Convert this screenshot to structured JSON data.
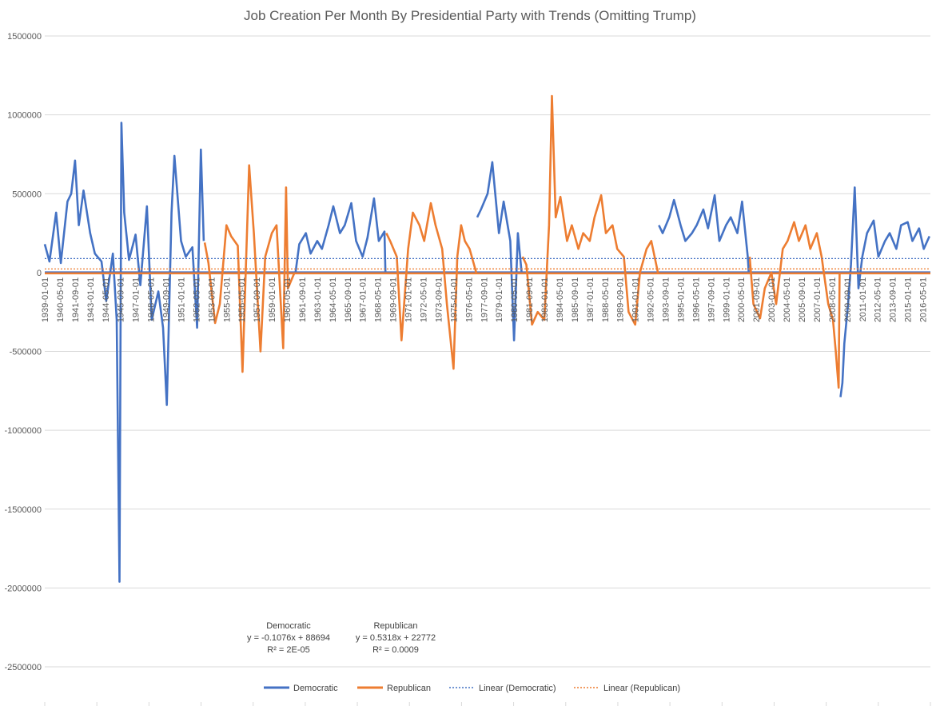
{
  "colors": {
    "democratic": "#4472C4",
    "republican": "#ED7D31",
    "grid": "#D9D9D9",
    "text": "#595959"
  },
  "chart_data": {
    "type": "line",
    "title": "Job Creation Per Month By Presidential Party with Trends (Omitting Trump)",
    "xlabel": "",
    "ylabel": "",
    "ylim": [
      -2500000,
      1500000
    ],
    "y_ticks": [
      1500000,
      1000000,
      500000,
      0,
      -500000,
      -1000000,
      -1500000,
      -2000000,
      -2500000
    ],
    "y_tick_labels": [
      "1500000",
      "1000000",
      "500000",
      "0",
      "-500000",
      "-1000000",
      "-1500000",
      "-2000000",
      "-2500000"
    ],
    "x_range": [
      "1939-01",
      "2017-01"
    ],
    "x_tick_labels": [
      "1939-01-01",
      "1940-05-01",
      "1941-09-01",
      "1943-01-01",
      "1944-05-01",
      "1945-09-01",
      "1947-01-01",
      "1948-05-01",
      "1949-09-01",
      "1951-01-01",
      "1952-05-01",
      "1953-09-01",
      "1955-01-01",
      "1956-05-01",
      "1957-09-01",
      "1959-01-01",
      "1960-05-01",
      "1961-09-01",
      "1963-01-01",
      "1964-05-01",
      "1965-09-01",
      "1967-01-01",
      "1968-05-01",
      "1969-09-01",
      "1971-01-01",
      "1972-05-01",
      "1973-09-01",
      "1975-01-01",
      "1976-05-01",
      "1977-09-01",
      "1979-01-01",
      "1980-05-01",
      "1981-09-01",
      "1983-01-01",
      "1984-05-01",
      "1985-09-01",
      "1987-01-01",
      "1988-05-01",
      "1989-09-01",
      "1991-01-01",
      "1992-05-01",
      "1993-09-01",
      "1995-01-01",
      "1996-05-01",
      "1997-09-01",
      "1999-01-01",
      "2000-05-01",
      "2001-09-01",
      "2003-01-01",
      "2004-05-01",
      "2005-09-01",
      "2007-01-01",
      "2008-05-01",
      "2009-09-01",
      "2011-01-01",
      "2012-05-01",
      "2013-09-01",
      "2015-01-01",
      "2016-05-01"
    ],
    "legend": {
      "position": "bottom",
      "entries": [
        "Democratic",
        "Republican",
        "Linear (Democratic)",
        "Linear (Republican)"
      ]
    },
    "grid": true,
    "series": [
      {
        "name": "Democratic",
        "x": [
          "1939-01",
          "1939-06",
          "1940-01",
          "1940-06",
          "1941-01",
          "1941-05",
          "1941-09",
          "1942-01",
          "1942-06",
          "1943-01",
          "1943-06",
          "1944-01",
          "1944-06",
          "1945-01",
          "1945-05",
          "1945-08",
          "1945-10",
          "1946-01",
          "1946-06",
          "1947-01",
          "1947-06",
          "1948-01",
          "1948-06",
          "1949-01",
          "1949-06",
          "1949-10",
          "1950-03",
          "1950-06",
          "1951-01",
          "1951-06",
          "1952-01",
          "1952-06",
          "1952-10",
          "1953-01",
          "1953-02",
          "1961-02",
          "2016-12"
        ],
        "values": [
          180000,
          70000,
          380000,
          60000,
          450000,
          500000,
          710000,
          300000,
          520000,
          250000,
          120000,
          70000,
          -180000,
          120000,
          -300000,
          -1960000,
          950000,
          380000,
          80000,
          240000,
          -80000,
          420000,
          -300000,
          -120000,
          -350000,
          -840000,
          380000,
          740000,
          200000,
          100000,
          160000,
          -350000,
          780000,
          200000,
          0,
          0,
          0
        ],
        "segments": [
          {
            "x": [
              "1939-01",
              "1939-06",
              "1940-01",
              "1940-06",
              "1941-01",
              "1941-05",
              "1941-09",
              "1942-01",
              "1942-06",
              "1943-01",
              "1943-06",
              "1944-01",
              "1944-06",
              "1945-01",
              "1945-05",
              "1945-08",
              "1945-10",
              "1946-01",
              "1946-06",
              "1947-01",
              "1947-06",
              "1948-01",
              "1948-06",
              "1949-01",
              "1949-06",
              "1949-10",
              "1950-03",
              "1950-06",
              "1951-01",
              "1951-06",
              "1952-01",
              "1952-06",
              "1952-10",
              "1953-01"
            ],
            "values": [
              180000,
              70000,
              380000,
              60000,
              450000,
              500000,
              710000,
              300000,
              520000,
              250000,
              120000,
              70000,
              -180000,
              120000,
              -300000,
              -1960000,
              950000,
              380000,
              80000,
              240000,
              -80000,
              420000,
              -300000,
              -120000,
              -350000,
              -840000,
              380000,
              740000,
              200000,
              100000,
              160000,
              -350000,
              780000,
              200000
            ]
          },
          {
            "x": [
              "1961-02",
              "1961-06",
              "1962-01",
              "1962-06",
              "1963-01",
              "1963-06",
              "1964-01",
              "1964-06",
              "1965-01",
              "1965-06",
              "1966-01",
              "1966-06",
              "1967-01",
              "1967-06",
              "1968-01",
              "1968-06",
              "1968-12",
              "1969-01"
            ],
            "values": [
              0,
              180000,
              250000,
              120000,
              200000,
              150000,
              300000,
              420000,
              250000,
              300000,
              440000,
              200000,
              100000,
              220000,
              470000,
              200000,
              260000,
              0
            ]
          },
          {
            "x": [
              "1977-02",
              "1977-06",
              "1978-01",
              "1978-06",
              "1979-01",
              "1979-06",
              "1980-01",
              "1980-05",
              "1980-09",
              "1981-01"
            ],
            "values": [
              350000,
              400000,
              500000,
              700000,
              250000,
              450000,
              200000,
              -430000,
              250000,
              0
            ]
          },
          {
            "x": [
              "1993-02",
              "1993-06",
              "1994-01",
              "1994-06",
              "1995-01",
              "1995-06",
              "1996-01",
              "1996-06",
              "1997-01",
              "1997-06",
              "1998-01",
              "1998-06",
              "1999-01",
              "1999-06",
              "2000-01",
              "2000-06",
              "2000-12",
              "2001-01"
            ],
            "values": [
              300000,
              250000,
              350000,
              460000,
              300000,
              200000,
              250000,
              300000,
              400000,
              280000,
              490000,
              200000,
              300000,
              350000,
              250000,
              450000,
              100000,
              0
            ]
          },
          {
            "x": [
              "2009-02",
              "2009-04",
              "2009-06",
              "2009-10",
              "2010-01",
              "2010-05",
              "2010-09",
              "2011-01",
              "2011-06",
              "2012-01",
              "2012-06",
              "2013-01",
              "2013-06",
              "2014-01",
              "2014-06",
              "2015-01",
              "2015-06",
              "2016-01",
              "2016-06",
              "2016-12"
            ],
            "values": [
              -790000,
              -700000,
              -450000,
              -200000,
              50000,
              540000,
              -100000,
              100000,
              250000,
              330000,
              100000,
              200000,
              250000,
              150000,
              300000,
              320000,
              200000,
              280000,
              150000,
              230000
            ]
          }
        ]
      },
      {
        "name": "Republican",
        "x": [],
        "values": [],
        "segments": [
          {
            "x": [
              "1953-02",
              "1953-06",
              "1954-01",
              "1954-06",
              "1955-01",
              "1955-06",
              "1956-01",
              "1956-06",
              "1957-01",
              "1957-06",
              "1958-01",
              "1958-06",
              "1959-01",
              "1959-06",
              "1960-01",
              "1960-04",
              "1960-06",
              "1961-01"
            ],
            "values": [
              190000,
              60000,
              -320000,
              -200000,
              300000,
              230000,
              170000,
              -630000,
              680000,
              250000,
              -500000,
              100000,
              250000,
              300000,
              -480000,
              540000,
              -100000,
              0
            ]
          },
          {
            "x": [
              "1969-02",
              "1969-06",
              "1970-01",
              "1970-06",
              "1971-01",
              "1971-06",
              "1972-01",
              "1972-06",
              "1973-01",
              "1973-06",
              "1974-01",
              "1974-06",
              "1975-01",
              "1975-05",
              "1975-09",
              "1976-01",
              "1976-06",
              "1977-01"
            ],
            "values": [
              250000,
              200000,
              100000,
              -430000,
              150000,
              380000,
              300000,
              200000,
              440000,
              300000,
              150000,
              -200000,
              -610000,
              100000,
              300000,
              200000,
              150000,
              0
            ]
          },
          {
            "x": [
              "1981-02",
              "1981-06",
              "1981-12",
              "1982-06",
              "1983-01",
              "1983-06",
              "1983-09",
              "1984-01",
              "1984-06",
              "1985-01",
              "1985-06",
              "1986-01",
              "1986-06",
              "1987-01",
              "1987-06",
              "1988-01",
              "1988-06",
              "1989-01",
              "1989-06",
              "1990-01",
              "1990-06",
              "1991-01",
              "1991-06",
              "1992-01",
              "1992-06",
              "1993-01"
            ],
            "values": [
              100000,
              50000,
              -330000,
              -250000,
              -300000,
              300000,
              1120000,
              350000,
              480000,
              200000,
              300000,
              150000,
              250000,
              200000,
              350000,
              490000,
              250000,
              300000,
              150000,
              100000,
              -250000,
              -330000,
              0,
              150000,
              200000,
              0
            ]
          },
          {
            "x": [
              "2001-02",
              "2001-06",
              "2002-01",
              "2002-06",
              "2003-01",
              "2003-06",
              "2004-01",
              "2004-06",
              "2005-01",
              "2005-06",
              "2006-01",
              "2006-06",
              "2007-01",
              "2007-06",
              "2008-01",
              "2008-06",
              "2008-09",
              "2008-12",
              "2009-01"
            ],
            "values": [
              100000,
              -200000,
              -290000,
              -100000,
              0,
              -200000,
              150000,
              200000,
              320000,
              200000,
              300000,
              150000,
              250000,
              100000,
              -200000,
              -300000,
              -500000,
              -730000,
              0
            ]
          }
        ]
      }
    ],
    "trendlines": [
      {
        "name": "Linear (Democratic)",
        "series": "Democratic",
        "equation": "y = -0.1076x + 88694",
        "r2": "R² = 2E-05",
        "start_value": 88694,
        "end_value": 88600
      },
      {
        "name": "Linear (Republican)",
        "series": "Republican",
        "equation": "y = 0.5318x + 22772",
        "r2": "R² = 0.0009",
        "start_value": 22772,
        "end_value": 23270
      }
    ],
    "annotations": [
      {
        "label": "Democratic",
        "equation": "y = -0.1076x + 88694",
        "r2": "R² = 2E-05"
      },
      {
        "label": "Republican",
        "equation": "y = 0.5318x + 22772",
        "r2": "R² = 0.0009"
      }
    ]
  }
}
